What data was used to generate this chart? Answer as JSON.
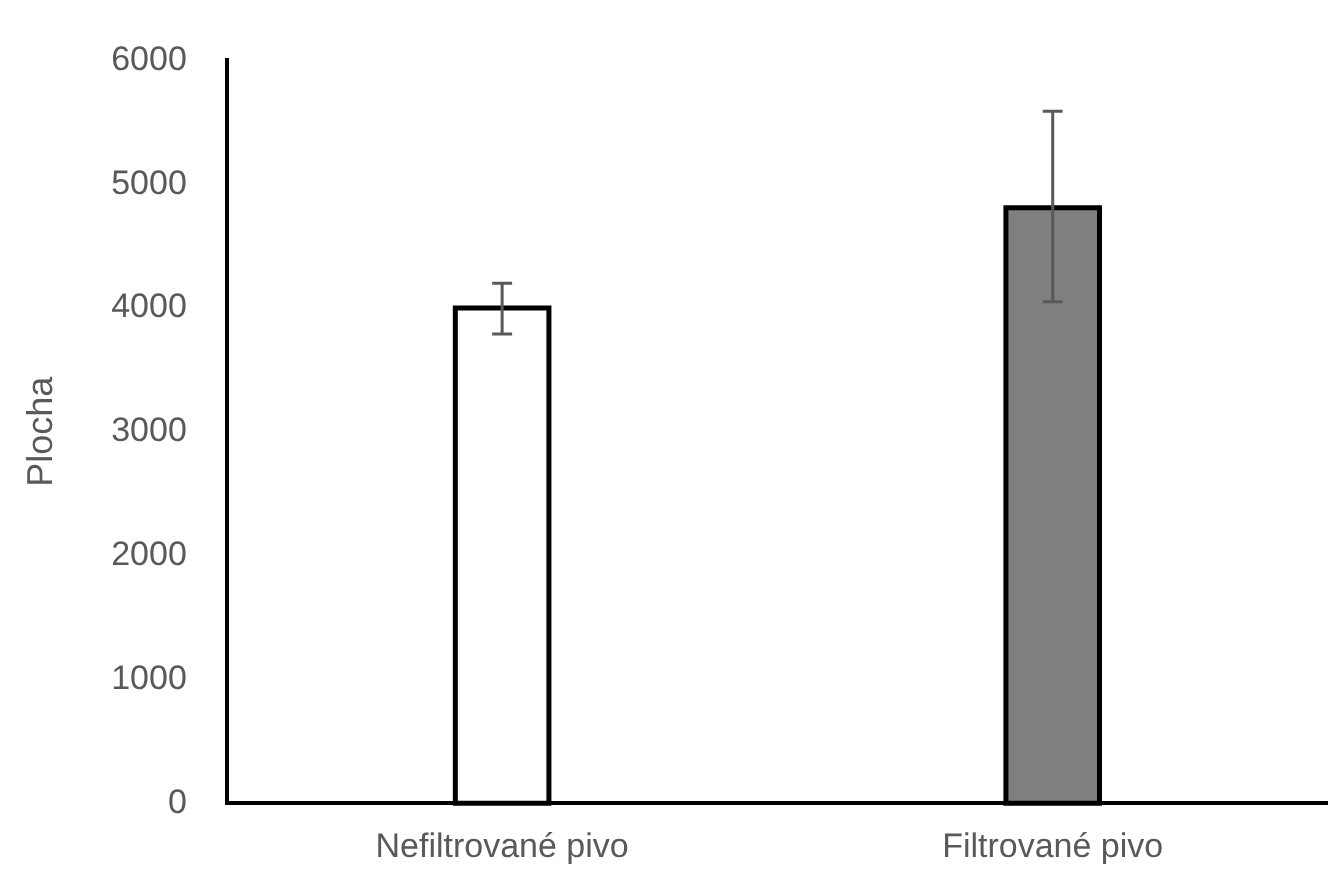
{
  "chart_data": {
    "type": "bar",
    "ylabel": "Plocha",
    "categories": [
      "Nefiltrované pivo",
      "Filtrované pivo"
    ],
    "values": [
      4000,
      4810
    ],
    "colors": [
      "#ffffff",
      "#7f7f7f"
    ],
    "errors": [
      [
        3790,
        4200
      ],
      [
        4050,
        5590
      ]
    ],
    "ylim": [
      0,
      6000
    ],
    "yticks": [
      0,
      1000,
      2000,
      3000,
      4000,
      5000,
      6000
    ],
    "grid": false,
    "legend": false
  }
}
